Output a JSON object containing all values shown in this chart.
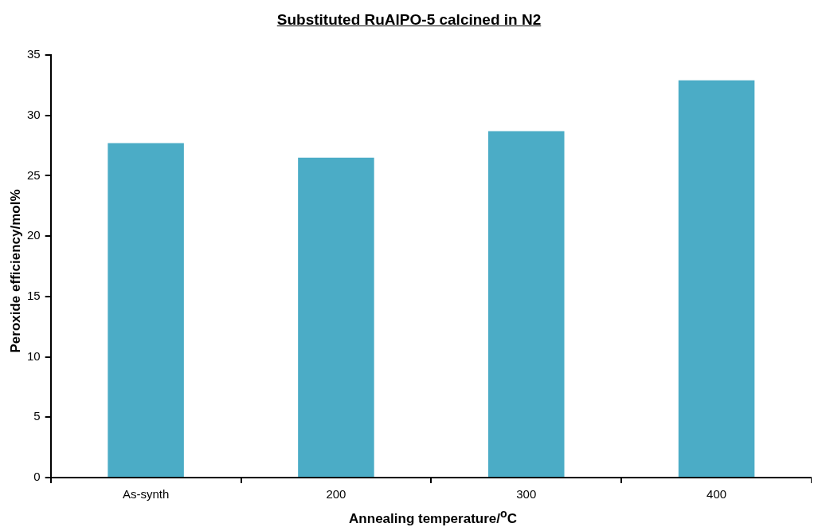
{
  "chart_data": {
    "type": "bar",
    "title": "Substituted RuAlPO-5 calcined in N2",
    "xlabel": "Annealing temperature/$^{o}$C",
    "ylabel": "Peroxide efficiency/mol%",
    "categories": [
      "As-synth",
      "200",
      "300",
      "400"
    ],
    "values": [
      27.7,
      26.5,
      28.7,
      32.9
    ],
    "color": "#4bacc6",
    "ylim": [
      0,
      35
    ],
    "yticks": [
      0,
      5,
      10,
      15,
      20,
      25,
      30,
      35
    ],
    "grid": false,
    "legend": false
  }
}
